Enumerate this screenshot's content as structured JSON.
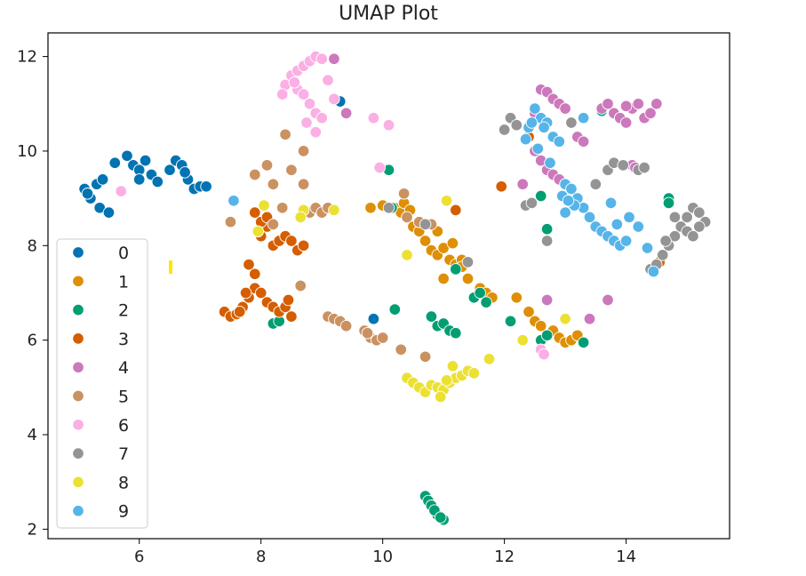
{
  "chart_data": {
    "type": "scatter",
    "title": "UMAP Plot",
    "xlabel": "",
    "ylabel": "",
    "xlim": [
      4.5,
      15.7
    ],
    "ylim": [
      1.8,
      12.5
    ],
    "xticks": [
      6,
      8,
      10,
      12,
      14
    ],
    "yticks": [
      2,
      4,
      6,
      8,
      10,
      12
    ],
    "grid": false,
    "legend": "center-left",
    "series": [
      {
        "name": "0",
        "color": "#0173b2",
        "points": [
          [
            5.1,
            9.2
          ],
          [
            5.2,
            9.0
          ],
          [
            5.3,
            9.3
          ],
          [
            5.15,
            9.1
          ],
          [
            5.35,
            8.8
          ],
          [
            5.5,
            8.7
          ],
          [
            5.4,
            9.4
          ],
          [
            5.6,
            9.75
          ],
          [
            5.8,
            9.9
          ],
          [
            5.9,
            9.7
          ],
          [
            6.0,
            9.6
          ],
          [
            6.1,
            9.8
          ],
          [
            6.2,
            9.5
          ],
          [
            6.0,
            9.4
          ],
          [
            6.3,
            9.35
          ],
          [
            6.5,
            9.6
          ],
          [
            6.6,
            9.8
          ],
          [
            6.7,
            9.7
          ],
          [
            6.8,
            9.4
          ],
          [
            6.9,
            9.2
          ],
          [
            7.0,
            9.25
          ],
          [
            7.1,
            9.25
          ],
          [
            6.75,
            9.55
          ],
          [
            9.3,
            11.05
          ],
          [
            9.85,
            6.45
          ]
        ]
      },
      {
        "name": "1",
        "color": "#de8f05",
        "points": [
          [
            9.8,
            8.8
          ],
          [
            10.0,
            8.85
          ],
          [
            10.2,
            8.8
          ],
          [
            10.3,
            8.7
          ],
          [
            10.4,
            8.6
          ],
          [
            10.5,
            8.4
          ],
          [
            10.6,
            8.3
          ],
          [
            10.7,
            8.1
          ],
          [
            10.8,
            7.9
          ],
          [
            10.9,
            7.8
          ],
          [
            11.0,
            7.95
          ],
          [
            11.1,
            7.7
          ],
          [
            11.2,
            7.6
          ],
          [
            11.3,
            7.7
          ],
          [
            11.4,
            7.3
          ],
          [
            11.6,
            7.1
          ],
          [
            11.7,
            7.0
          ],
          [
            11.8,
            6.9
          ],
          [
            12.2,
            6.9
          ],
          [
            12.4,
            6.6
          ],
          [
            12.5,
            6.4
          ],
          [
            12.6,
            6.3
          ],
          [
            12.8,
            6.2
          ],
          [
            12.9,
            6.05
          ],
          [
            13.0,
            5.95
          ],
          [
            13.1,
            6.0
          ],
          [
            13.2,
            6.1
          ],
          [
            10.35,
            8.9
          ],
          [
            10.45,
            8.75
          ],
          [
            10.9,
            8.3
          ],
          [
            11.0,
            7.3
          ],
          [
            11.15,
            8.05
          ],
          [
            11.3,
            7.55
          ]
        ]
      },
      {
        "name": "2",
        "color": "#029e73",
        "points": [
          [
            10.7,
            2.7
          ],
          [
            10.75,
            2.6
          ],
          [
            10.8,
            2.5
          ],
          [
            10.9,
            2.3
          ],
          [
            11.0,
            2.2
          ],
          [
            10.85,
            2.4
          ],
          [
            10.95,
            2.25
          ],
          [
            10.8,
            6.5
          ],
          [
            10.9,
            6.3
          ],
          [
            11.0,
            6.35
          ],
          [
            11.1,
            6.2
          ],
          [
            11.2,
            6.15
          ],
          [
            11.5,
            6.9
          ],
          [
            11.6,
            7.0
          ],
          [
            11.7,
            6.8
          ],
          [
            12.1,
            6.4
          ],
          [
            12.6,
            6.0
          ],
          [
            12.7,
            6.1
          ],
          [
            13.3,
            5.95
          ],
          [
            8.2,
            6.35
          ],
          [
            8.3,
            6.4
          ],
          [
            10.2,
            6.65
          ],
          [
            10.1,
            9.6
          ],
          [
            10.15,
            8.8
          ],
          [
            11.2,
            7.5
          ],
          [
            12.6,
            9.05
          ],
          [
            12.7,
            8.35
          ],
          [
            13.6,
            10.85
          ],
          [
            14.7,
            9.0
          ],
          [
            14.7,
            8.9
          ]
        ]
      },
      {
        "name": "3",
        "color": "#d55e00",
        "points": [
          [
            7.4,
            6.6
          ],
          [
            7.5,
            6.5
          ],
          [
            7.6,
            6.55
          ],
          [
            7.7,
            6.7
          ],
          [
            7.8,
            6.9
          ],
          [
            7.9,
            7.1
          ],
          [
            8.0,
            7.0
          ],
          [
            8.1,
            6.8
          ],
          [
            8.2,
            6.7
          ],
          [
            8.3,
            6.6
          ],
          [
            8.4,
            6.7
          ],
          [
            8.5,
            6.5
          ],
          [
            7.8,
            7.6
          ],
          [
            7.9,
            7.4
          ],
          [
            8.0,
            8.2
          ],
          [
            8.1,
            8.4
          ],
          [
            8.2,
            8.0
          ],
          [
            8.3,
            8.1
          ],
          [
            8.4,
            8.2
          ],
          [
            8.5,
            8.1
          ],
          [
            8.6,
            7.9
          ],
          [
            8.7,
            8.0
          ],
          [
            7.9,
            8.7
          ],
          [
            8.0,
            8.5
          ],
          [
            8.1,
            8.6
          ],
          [
            7.75,
            7.0
          ],
          [
            7.65,
            6.6
          ],
          [
            8.45,
            6.85
          ],
          [
            11.2,
            8.75
          ],
          [
            11.95,
            9.25
          ],
          [
            12.4,
            10.3
          ],
          [
            14.55,
            7.65
          ]
        ]
      },
      {
        "name": "4",
        "color": "#cc78bc",
        "points": [
          [
            12.5,
            10.8
          ],
          [
            12.6,
            11.3
          ],
          [
            12.7,
            11.25
          ],
          [
            12.8,
            11.1
          ],
          [
            12.9,
            11.0
          ],
          [
            13.0,
            10.9
          ],
          [
            12.5,
            10.0
          ],
          [
            12.6,
            9.8
          ],
          [
            12.7,
            9.6
          ],
          [
            12.8,
            9.5
          ],
          [
            12.9,
            9.4
          ],
          [
            13.0,
            9.3
          ],
          [
            13.2,
            10.3
          ],
          [
            13.3,
            10.2
          ],
          [
            13.6,
            10.9
          ],
          [
            13.7,
            11.0
          ],
          [
            13.8,
            10.8
          ],
          [
            13.9,
            10.7
          ],
          [
            14.0,
            10.6
          ],
          [
            14.1,
            10.9
          ],
          [
            14.2,
            11.0
          ],
          [
            14.3,
            10.7
          ],
          [
            14.4,
            10.8
          ],
          [
            14.5,
            11.0
          ],
          [
            9.2,
            11.95
          ],
          [
            9.4,
            10.8
          ],
          [
            12.3,
            9.3
          ],
          [
            12.7,
            6.85
          ],
          [
            13.4,
            6.45
          ],
          [
            13.7,
            6.85
          ],
          [
            14.1,
            9.7
          ],
          [
            14.15,
            9.65
          ],
          [
            14.0,
            10.95
          ]
        ]
      },
      {
        "name": "5",
        "color": "#ca9161",
        "points": [
          [
            7.5,
            8.5
          ],
          [
            7.9,
            9.5
          ],
          [
            8.1,
            9.7
          ],
          [
            8.2,
            9.3
          ],
          [
            8.4,
            10.35
          ],
          [
            8.5,
            9.6
          ],
          [
            8.7,
            10.0
          ],
          [
            8.7,
            9.3
          ],
          [
            8.8,
            8.7
          ],
          [
            8.9,
            8.8
          ],
          [
            9.0,
            8.7
          ],
          [
            9.1,
            8.8
          ],
          [
            8.2,
            8.45
          ],
          [
            8.35,
            8.8
          ],
          [
            9.1,
            6.5
          ],
          [
            9.2,
            6.45
          ],
          [
            9.3,
            6.4
          ],
          [
            9.4,
            6.3
          ],
          [
            9.7,
            6.2
          ],
          [
            9.8,
            6.05
          ],
          [
            9.9,
            6.0
          ],
          [
            10.0,
            6.05
          ],
          [
            9.75,
            6.15
          ],
          [
            10.3,
            5.8
          ],
          [
            10.7,
            5.65
          ],
          [
            10.35,
            9.1
          ],
          [
            10.4,
            8.6
          ],
          [
            10.6,
            8.5
          ],
          [
            10.8,
            8.45
          ],
          [
            8.65,
            7.15
          ]
        ]
      },
      {
        "name": "6",
        "color": "#fbafe4",
        "points": [
          [
            8.4,
            11.4
          ],
          [
            8.5,
            11.6
          ],
          [
            8.6,
            11.7
          ],
          [
            8.7,
            11.8
          ],
          [
            8.8,
            11.9
          ],
          [
            8.9,
            12.0
          ],
          [
            9.0,
            11.95
          ],
          [
            8.6,
            11.3
          ],
          [
            8.7,
            11.2
          ],
          [
            8.8,
            11.0
          ],
          [
            8.9,
            10.8
          ],
          [
            9.0,
            10.7
          ],
          [
            9.1,
            11.5
          ],
          [
            9.2,
            11.1
          ],
          [
            8.75,
            10.6
          ],
          [
            8.9,
            10.4
          ],
          [
            9.85,
            10.7
          ],
          [
            10.1,
            10.55
          ],
          [
            9.95,
            9.65
          ],
          [
            5.7,
            9.15
          ],
          [
            8.55,
            11.45
          ],
          [
            12.6,
            5.8
          ],
          [
            12.65,
            5.7
          ],
          [
            8.35,
            11.2
          ]
        ]
      },
      {
        "name": "7",
        "color": "#949494",
        "points": [
          [
            14.4,
            7.5
          ],
          [
            14.5,
            7.6
          ],
          [
            14.6,
            7.8
          ],
          [
            14.7,
            8.0
          ],
          [
            14.8,
            8.2
          ],
          [
            14.9,
            8.4
          ],
          [
            15.0,
            8.6
          ],
          [
            15.1,
            8.8
          ],
          [
            15.2,
            8.7
          ],
          [
            15.3,
            8.5
          ],
          [
            15.0,
            8.3
          ],
          [
            14.8,
            8.6
          ],
          [
            15.2,
            8.4
          ],
          [
            15.1,
            8.2
          ],
          [
            14.65,
            8.1
          ],
          [
            13.7,
            9.6
          ],
          [
            13.8,
            9.75
          ],
          [
            13.95,
            9.7
          ],
          [
            14.2,
            9.6
          ],
          [
            14.3,
            9.65
          ],
          [
            13.5,
            9.3
          ],
          [
            12.1,
            10.7
          ],
          [
            12.0,
            10.45
          ],
          [
            12.2,
            10.55
          ],
          [
            13.1,
            10.6
          ],
          [
            12.35,
            8.85
          ],
          [
            12.45,
            8.9
          ],
          [
            12.7,
            8.1
          ],
          [
            10.7,
            8.45
          ],
          [
            10.1,
            8.8
          ],
          [
            11.4,
            7.65
          ]
        ]
      },
      {
        "name": "8",
        "color": "#ece133",
        "points": [
          [
            10.4,
            5.2
          ],
          [
            10.5,
            5.1
          ],
          [
            10.6,
            5.0
          ],
          [
            10.7,
            4.9
          ],
          [
            10.8,
            5.05
          ],
          [
            10.9,
            5.0
          ],
          [
            11.0,
            4.95
          ],
          [
            11.1,
            5.1
          ],
          [
            11.2,
            5.2
          ],
          [
            11.3,
            5.25
          ],
          [
            11.4,
            5.35
          ],
          [
            11.5,
            5.3
          ],
          [
            10.95,
            4.8
          ],
          [
            11.05,
            5.15
          ],
          [
            11.15,
            5.45
          ],
          [
            11.75,
            5.6
          ],
          [
            8.7,
            8.75
          ],
          [
            9.2,
            8.75
          ],
          [
            11.05,
            8.95
          ],
          [
            10.4,
            7.8
          ],
          [
            12.3,
            6.0
          ],
          [
            13.0,
            6.45
          ],
          [
            8.05,
            8.85
          ],
          [
            7.95,
            8.3
          ],
          [
            8.65,
            8.6
          ]
        ]
      },
      {
        "name": "9",
        "color": "#56b4e9",
        "points": [
          [
            12.4,
            10.5
          ],
          [
            12.5,
            10.9
          ],
          [
            12.6,
            10.7
          ],
          [
            12.7,
            10.6
          ],
          [
            12.8,
            10.3
          ],
          [
            12.9,
            10.2
          ],
          [
            13.0,
            9.3
          ],
          [
            13.1,
            9.2
          ],
          [
            13.2,
            9.0
          ],
          [
            13.3,
            8.8
          ],
          [
            13.4,
            8.6
          ],
          [
            13.5,
            8.4
          ],
          [
            13.6,
            8.3
          ],
          [
            13.7,
            8.2
          ],
          [
            13.8,
            8.1
          ],
          [
            13.9,
            8.0
          ],
          [
            14.0,
            8.1
          ],
          [
            14.2,
            8.4
          ],
          [
            14.35,
            7.95
          ],
          [
            13.15,
            8.85
          ],
          [
            13.3,
            10.7
          ],
          [
            12.55,
            10.05
          ],
          [
            12.75,
            9.75
          ],
          [
            12.35,
            10.25
          ],
          [
            7.55,
            8.95
          ],
          [
            14.45,
            7.45
          ],
          [
            13.85,
            8.45
          ],
          [
            13.0,
            8.7
          ],
          [
            12.95,
            9.05
          ],
          [
            13.75,
            8.9
          ],
          [
            14.05,
            8.6
          ],
          [
            12.45,
            10.6
          ],
          [
            12.65,
            10.5
          ],
          [
            13.05,
            8.95
          ]
        ]
      }
    ]
  }
}
